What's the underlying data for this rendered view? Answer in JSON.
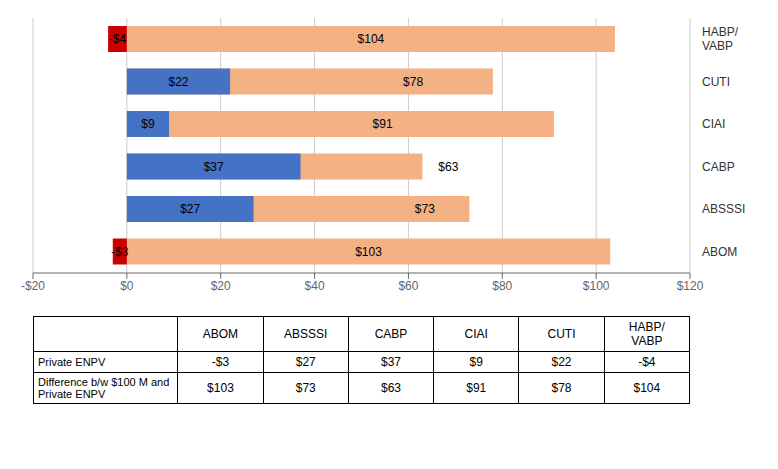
{
  "chart_data": {
    "type": "bar",
    "orientation": "horizontal",
    "stacked": false,
    "grid": true,
    "data_labels": true,
    "categories": [
      "ABOM",
      "ABSSSI",
      "CABP",
      "CIAI",
      "CUTI",
      "HABP/\nVABP"
    ],
    "series": [
      {
        "color": "#f4b183",
        "values": [
          103,
          73,
          63,
          91,
          78,
          104
        ],
        "value_labels": [
          "$103",
          "$73",
          "$63",
          "$91",
          "$78",
          "$104"
        ]
      },
      {
        "colors": [
          "#cc0000",
          "#4472c4",
          "#4472c4",
          "#4472c4",
          "#4472c4",
          "#cc0000"
        ],
        "values": [
          -3,
          27,
          37,
          9,
          22,
          -4
        ],
        "value_labels": [
          "-$3",
          "$27",
          "$37",
          "$9",
          "$22",
          "-$4"
        ]
      }
    ],
    "xlim": [
      -20,
      120
    ],
    "xticks": [
      {
        "value": -20,
        "label": "-$20"
      },
      {
        "value": 0,
        "label": "$0"
      },
      {
        "value": 20,
        "label": "$20"
      },
      {
        "value": 40,
        "label": "$40"
      },
      {
        "value": 60,
        "label": "$60"
      },
      {
        "value": 80,
        "label": "$80"
      },
      {
        "value": 100,
        "label": "$100"
      },
      {
        "value": 120,
        "label": "$120"
      }
    ],
    "table": {
      "columns": [
        "ABOM",
        "ABSSSI",
        "CABP",
        "CIAI",
        "CUTI",
        "HABP/\nVABP"
      ],
      "rows": [
        {
          "label": "Private ENPV",
          "cells": [
            "-$3",
            "$27",
            "$37",
            "$9",
            "$22",
            "-$4"
          ]
        },
        {
          "label": "Difference b/w $100 M and\nPrivate ENPV",
          "cells": [
            "$103",
            "$73",
            "$63",
            "$91",
            "$78",
            "$104"
          ]
        }
      ]
    }
  }
}
